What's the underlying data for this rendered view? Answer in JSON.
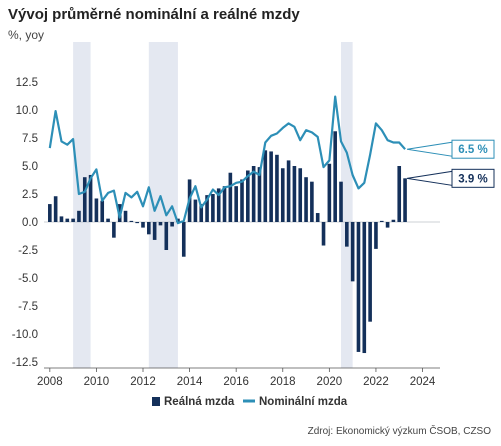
{
  "title": "Vývoj průměrné nominální a reálné mzdy",
  "subtitle": "%, yoy",
  "source": "Zdroj: Ekonomický výzkum ČSOB, CZSO",
  "chart_data": {
    "type": "bar+line",
    "x_start": 2008.0,
    "x_step": 0.25,
    "xlim": [
      2007.75,
      2024.75
    ],
    "ylim": [
      -12.5,
      12.5
    ],
    "y_ticks": [
      12.5,
      10.0,
      7.5,
      5.0,
      2.5,
      0.0,
      -2.5,
      -5.0,
      -7.5,
      -10.0,
      -12.5
    ],
    "x_ticks": [
      2008,
      2010,
      2012,
      2014,
      2016,
      2018,
      2020,
      2022,
      2024
    ],
    "shaded_periods": [
      [
        2009.0,
        2009.75
      ],
      [
        2012.25,
        2013.5
      ],
      [
        2020.5,
        2021.0
      ]
    ],
    "series": [
      {
        "name": "Reálná mzda",
        "type": "bar",
        "color": "#14305a",
        "values": [
          1.6,
          2.3,
          0.5,
          0.3,
          0.3,
          1.0,
          4.0,
          4.2,
          2.1,
          1.9,
          0.3,
          -1.4,
          1.6,
          1.0,
          0.1,
          -0.1,
          -0.5,
          -1.1,
          -1.6,
          -0.3,
          -2.5,
          -0.4,
          0.3,
          -3.1,
          3.8,
          2.0,
          1.6,
          2.4,
          2.5,
          3.0,
          3.2,
          4.4,
          3.2,
          3.8,
          4.6,
          5.0,
          4.9,
          6.4,
          6.3,
          6.0,
          4.8,
          5.5,
          5.0,
          4.8,
          4.0,
          3.6,
          0.8,
          -2.1,
          5.2,
          8.1,
          3.6,
          -2.2,
          -5.3,
          -11.6,
          -11.7,
          -8.9,
          -2.4,
          0.1,
          -0.5,
          0.2,
          5.0,
          3.9
        ],
        "last_value_label": "3.9 %"
      },
      {
        "name": "Nominální mzda",
        "type": "line",
        "color": "#2d8fb7",
        "values": [
          6.6,
          9.9,
          7.2,
          6.9,
          7.4,
          2.5,
          2.7,
          3.9,
          4.7,
          1.9,
          2.6,
          2.8,
          0.4,
          2.6,
          2.2,
          2.7,
          1.4,
          3.1,
          1.0,
          2.3,
          0.6,
          1.4,
          -0.1,
          0.1,
          2.1,
          3.2,
          1.3,
          2.0,
          2.9,
          2.4,
          3.1,
          3.2,
          3.5,
          3.6,
          4.1,
          4.5,
          4.2,
          7.1,
          7.7,
          7.9,
          8.4,
          8.8,
          8.5,
          7.3,
          8.2,
          8.0,
          7.6,
          4.9,
          5.5,
          11.2,
          7.2,
          6.2,
          4.2,
          3.0,
          3.5,
          6.0,
          8.8,
          8.2,
          7.3,
          7.1,
          7.1,
          6.5
        ],
        "last_value_label": "6.5 %"
      }
    ]
  }
}
